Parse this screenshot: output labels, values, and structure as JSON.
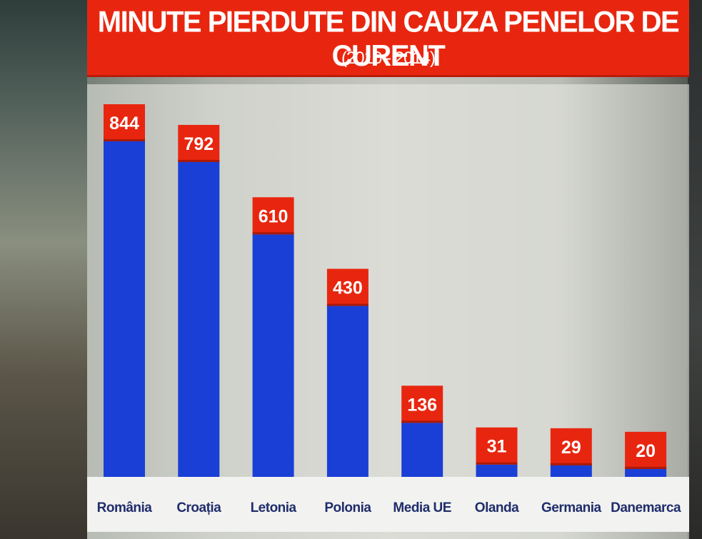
{
  "chart_data": {
    "type": "bar",
    "title": "MINUTE PIERDUTE DIN CAUZA PENELOR DE CURENT",
    "subtitle": "(2010 - 2014)",
    "categories": [
      "România",
      "Croația",
      "Letonia",
      "Polonia",
      "Media UE",
      "Olanda",
      "Germania",
      "Danemarca"
    ],
    "values": [
      844,
      792,
      610,
      430,
      136,
      31,
      29,
      20
    ],
    "value_labels": [
      "844",
      "792",
      "610",
      "430",
      "136",
      "31",
      "29",
      "20"
    ],
    "xlabel": "",
    "ylabel": "",
    "ylim": [
      0,
      844
    ],
    "grid": false,
    "legend": "none",
    "colors": {
      "bar": "#1a3fd6",
      "label_box": "#e8260f",
      "label_text": "#ffffff",
      "category_text": "#1f2d6b",
      "title_bg": "#e8260f"
    }
  }
}
